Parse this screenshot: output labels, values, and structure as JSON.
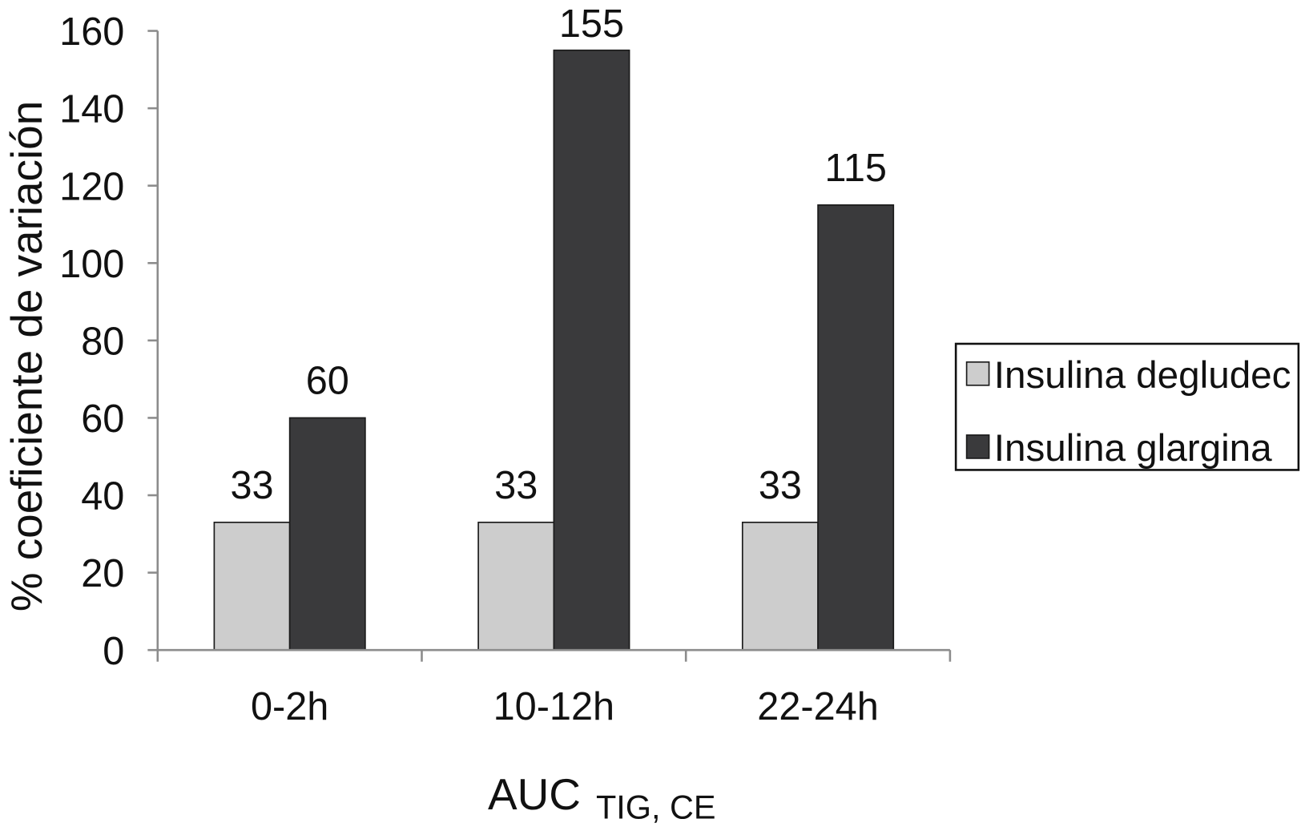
{
  "chart_data": {
    "type": "bar",
    "categories": [
      "0-2h",
      "10-12h",
      "22-24h"
    ],
    "series": [
      {
        "name": "Insulina degludec",
        "values": [
          33,
          33,
          33
        ],
        "color": "#cdcdcd"
      },
      {
        "name": "Insulina glargina",
        "values": [
          60,
          155,
          115
        ],
        "color": "#3a3a3c"
      }
    ],
    "xlabel": "AUC",
    "xlabel_subscript": "TIG, CE",
    "ylabel": "% coeficiente de variación",
    "ylim": [
      0,
      160
    ],
    "yticks": [
      0,
      20,
      40,
      60,
      80,
      100,
      120,
      140,
      160
    ],
    "data_labels": true,
    "grid": false,
    "legend": "right"
  }
}
